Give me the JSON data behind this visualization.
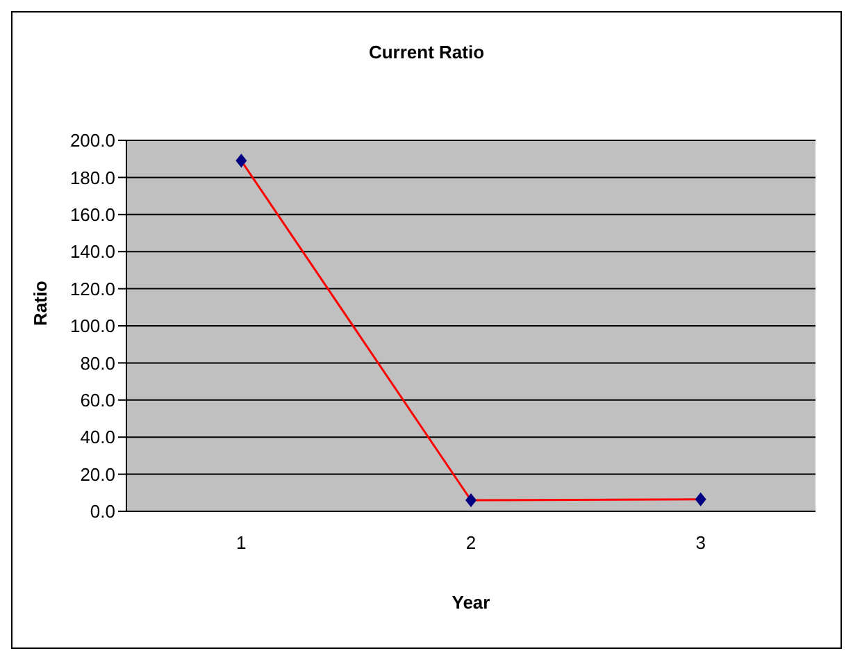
{
  "chart_data": {
    "type": "line",
    "title": "Current Ratio",
    "xlabel": "Year",
    "ylabel": "Ratio",
    "categories": [
      "1",
      "2",
      "3"
    ],
    "series": [
      {
        "color": "#ff0000",
        "values": [
          189,
          6.0,
          6.5
        ]
      }
    ],
    "ylim": [
      0,
      200
    ],
    "yticks": [
      {
        "value": 0,
        "label": "0.0"
      },
      {
        "value": 20,
        "label": "20.0"
      },
      {
        "value": 40,
        "label": "40.0"
      },
      {
        "value": 60,
        "label": "60.0"
      },
      {
        "value": 80,
        "label": "80.0"
      },
      {
        "value": 100,
        "label": "100.0"
      },
      {
        "value": 120,
        "label": "120.0"
      },
      {
        "value": 140,
        "label": "140.0"
      },
      {
        "value": 160,
        "label": "160.0"
      },
      {
        "value": 180,
        "label": "180.0"
      },
      {
        "value": 200,
        "label": "200.0"
      }
    ],
    "grid": "y",
    "legend": false,
    "marker": "diamond",
    "line_style": "solid"
  }
}
